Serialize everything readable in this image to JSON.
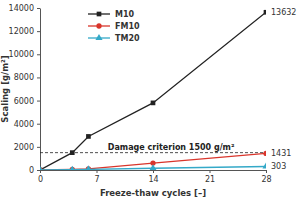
{
  "chart_data": {
    "type": "line",
    "x_label": "Freeze-thaw cycles [–]",
    "y_label": "Scaling [g/m²]",
    "x": [
      0,
      4,
      6,
      14,
      28
    ],
    "series": [
      {
        "name": "M10",
        "color": "#222222",
        "marker": "square",
        "values": [
          0,
          1500,
          2900,
          5800,
          13632
        ]
      },
      {
        "name": "FM10",
        "color": "#d9352b",
        "marker": "circle",
        "values": [
          0,
          50,
          100,
          600,
          1431
        ]
      },
      {
        "name": "TM20",
        "color": "#34a9c8",
        "marker": "triangle",
        "values": [
          0,
          20,
          50,
          150,
          303
        ]
      }
    ],
    "xlim": [
      0,
      28
    ],
    "xticks": [
      0,
      7,
      14,
      21,
      28
    ],
    "ylim": [
      0,
      14000
    ],
    "yticks": [
      0,
      2000,
      4000,
      6000,
      8000,
      10000,
      12000,
      14000
    ],
    "grid": false,
    "legend": "upper left",
    "data_labels": true,
    "reference_line": {
      "value": 1500,
      "label": "Damage criterion 1500 g/m²",
      "line_style": "dashed"
    }
  }
}
